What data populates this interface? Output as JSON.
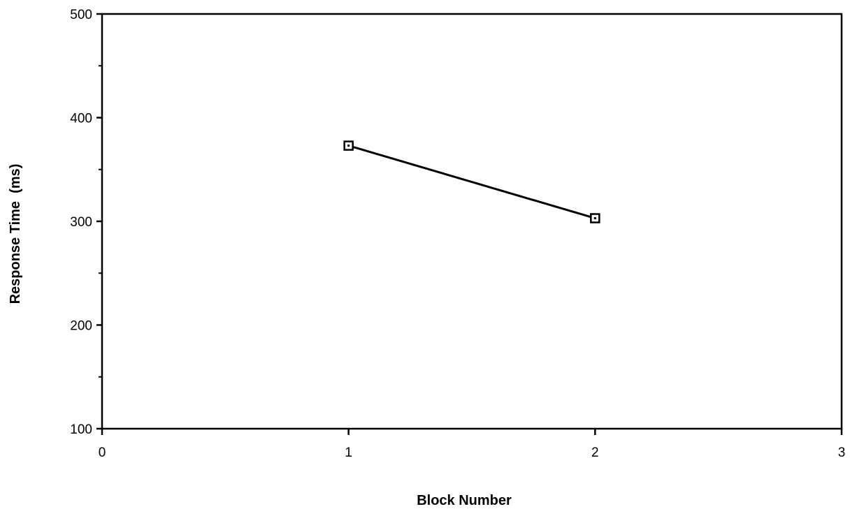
{
  "chart_data": {
    "type": "line",
    "title": "",
    "xlabel": "Block Number",
    "ylabel": "Response Time  (ms)",
    "xlim": [
      0,
      3
    ],
    "ylim": [
      100,
      500
    ],
    "x_ticks": [
      "0",
      "1",
      "2",
      "3"
    ],
    "y_ticks": [
      "100",
      "200",
      "300",
      "400",
      "500"
    ],
    "grid": false,
    "marker": "square",
    "colors": {
      "line": "#000000",
      "background": "#ffffff"
    },
    "series": [
      {
        "x": [
          1,
          2
        ],
        "values": [
          373,
          303
        ]
      }
    ]
  }
}
